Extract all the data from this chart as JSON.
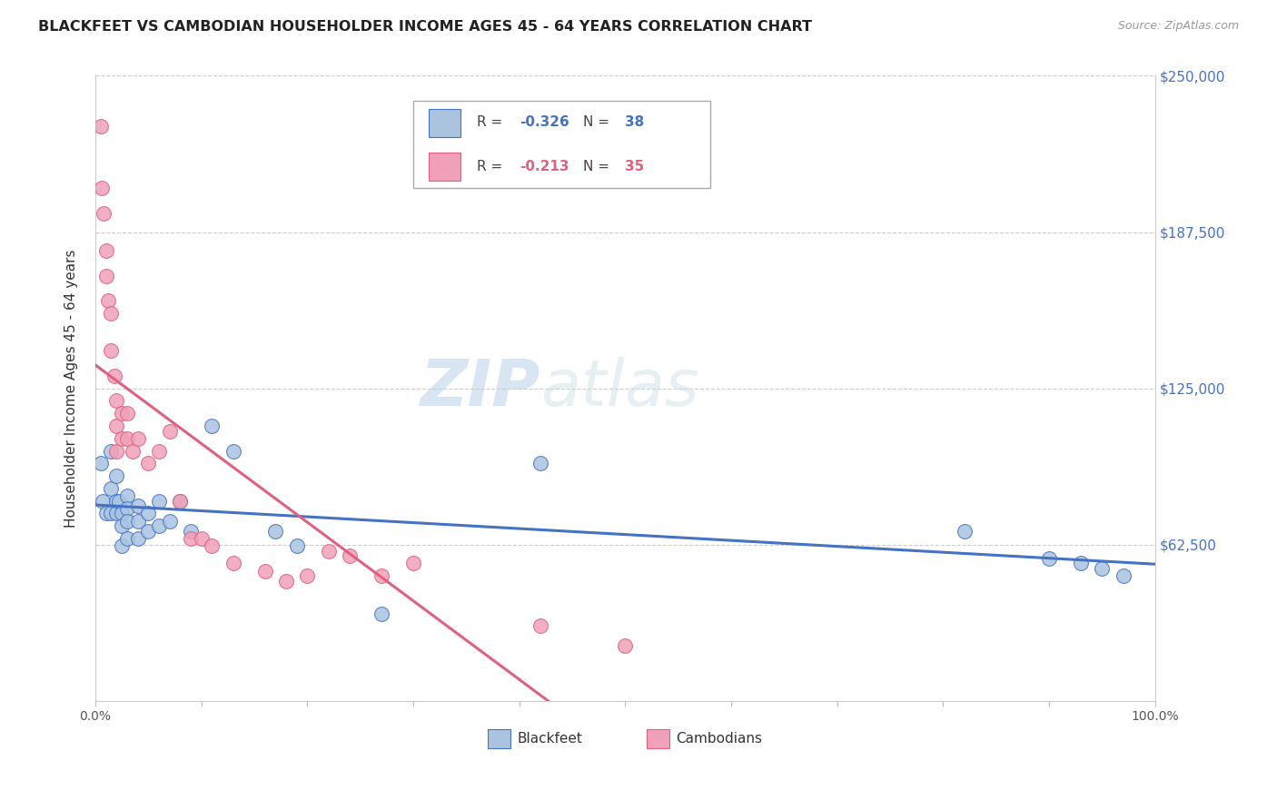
{
  "title": "BLACKFEET VS CAMBODIAN HOUSEHOLDER INCOME AGES 45 - 64 YEARS CORRELATION CHART",
  "source": "Source: ZipAtlas.com",
  "ylabel": "Householder Income Ages 45 - 64 years",
  "xlim": [
    0,
    1.0
  ],
  "ylim": [
    0,
    250000
  ],
  "yticks": [
    0,
    62500,
    125000,
    187500,
    250000
  ],
  "ytick_labels": [
    "",
    "$62,500",
    "$125,000",
    "$187,500",
    "$250,000"
  ],
  "xticks": [
    0.0,
    0.1,
    0.2,
    0.3,
    0.4,
    0.5,
    0.6,
    0.7,
    0.8,
    0.9,
    1.0
  ],
  "xtick_labels": [
    "0.0%",
    "",
    "",
    "",
    "",
    "",
    "",
    "",
    "",
    "",
    "100.0%"
  ],
  "background_color": "#ffffff",
  "blackfeet_color": "#aac4e0",
  "cambodian_color": "#f0a0b8",
  "blackfeet_line_color": "#4472c4",
  "cambodian_line_color": "#e06080",
  "blackfeet_x": [
    0.005,
    0.007,
    0.01,
    0.015,
    0.015,
    0.015,
    0.02,
    0.02,
    0.02,
    0.022,
    0.025,
    0.025,
    0.025,
    0.03,
    0.03,
    0.03,
    0.03,
    0.04,
    0.04,
    0.04,
    0.05,
    0.05,
    0.06,
    0.06,
    0.07,
    0.08,
    0.09,
    0.11,
    0.13,
    0.17,
    0.19,
    0.27,
    0.42,
    0.82,
    0.9,
    0.93,
    0.95,
    0.97
  ],
  "blackfeet_y": [
    95000,
    80000,
    75000,
    100000,
    85000,
    75000,
    90000,
    80000,
    75000,
    80000,
    75000,
    70000,
    62000,
    82000,
    77000,
    72000,
    65000,
    78000,
    72000,
    65000,
    75000,
    68000,
    80000,
    70000,
    72000,
    80000,
    68000,
    110000,
    100000,
    68000,
    62000,
    35000,
    95000,
    68000,
    57000,
    55000,
    53000,
    50000
  ],
  "cambodian_x": [
    0.005,
    0.006,
    0.008,
    0.01,
    0.01,
    0.012,
    0.015,
    0.015,
    0.018,
    0.02,
    0.02,
    0.02,
    0.025,
    0.025,
    0.03,
    0.03,
    0.035,
    0.04,
    0.05,
    0.06,
    0.07,
    0.08,
    0.09,
    0.1,
    0.11,
    0.13,
    0.16,
    0.18,
    0.2,
    0.22,
    0.24,
    0.27,
    0.3,
    0.42,
    0.5
  ],
  "cambodian_y": [
    230000,
    205000,
    195000,
    180000,
    170000,
    160000,
    155000,
    140000,
    130000,
    120000,
    110000,
    100000,
    115000,
    105000,
    115000,
    105000,
    100000,
    105000,
    95000,
    100000,
    108000,
    80000,
    65000,
    65000,
    62000,
    55000,
    52000,
    48000,
    50000,
    60000,
    58000,
    50000,
    55000,
    30000,
    22000
  ]
}
